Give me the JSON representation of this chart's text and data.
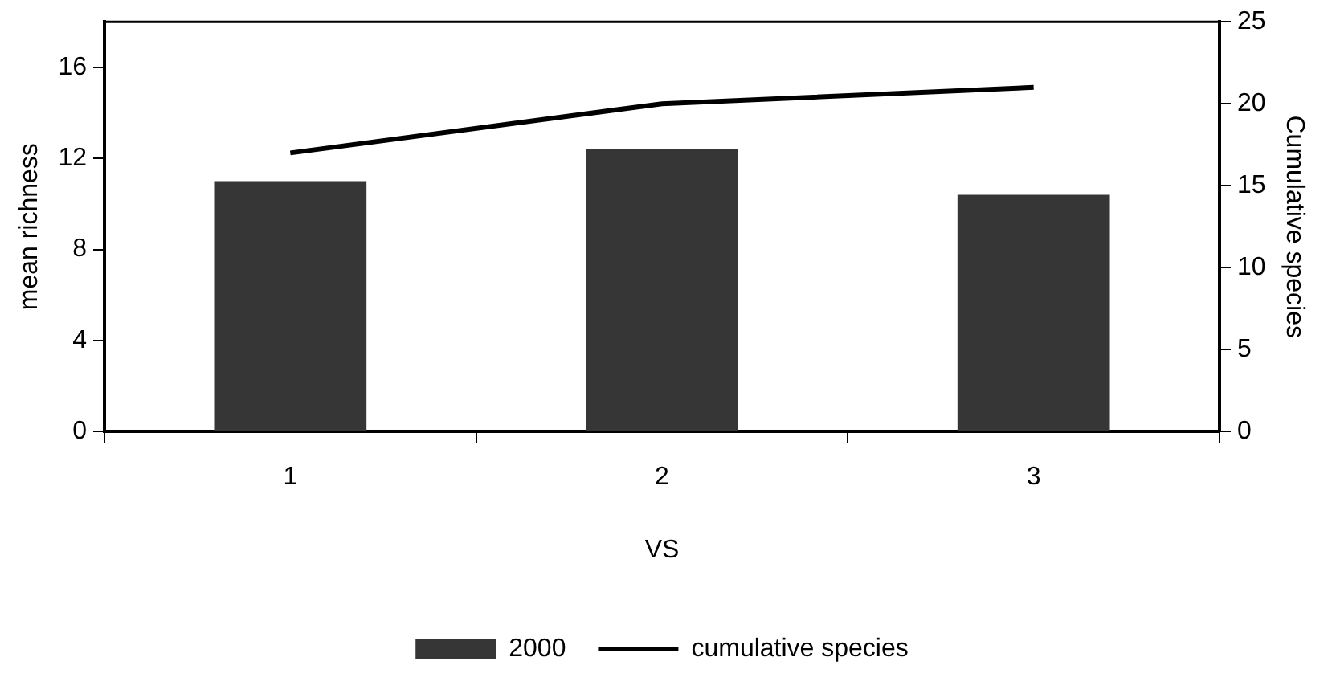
{
  "chart_data": {
    "type": "bar",
    "xlabel": "VS",
    "ylabel": "mean richness",
    "y2label": "Cumulative species",
    "categories": [
      "1",
      "2",
      "3"
    ],
    "series": [
      {
        "name": "2000",
        "color": "#363636",
        "values": [
          11,
          12.4,
          10.4
        ]
      },
      {
        "name": "cumulative species",
        "type": "line",
        "axis": "y2",
        "color": "#000000",
        "values": [
          17,
          20,
          21
        ]
      }
    ],
    "ylim": [
      0,
      18
    ],
    "yticks": [
      0,
      4,
      8,
      12,
      16
    ],
    "y2lim": [
      0,
      25
    ],
    "y2ticks": [
      0,
      5,
      10,
      15,
      20,
      25
    ],
    "grid": false,
    "legend": "bottom",
    "marker": "none"
  }
}
